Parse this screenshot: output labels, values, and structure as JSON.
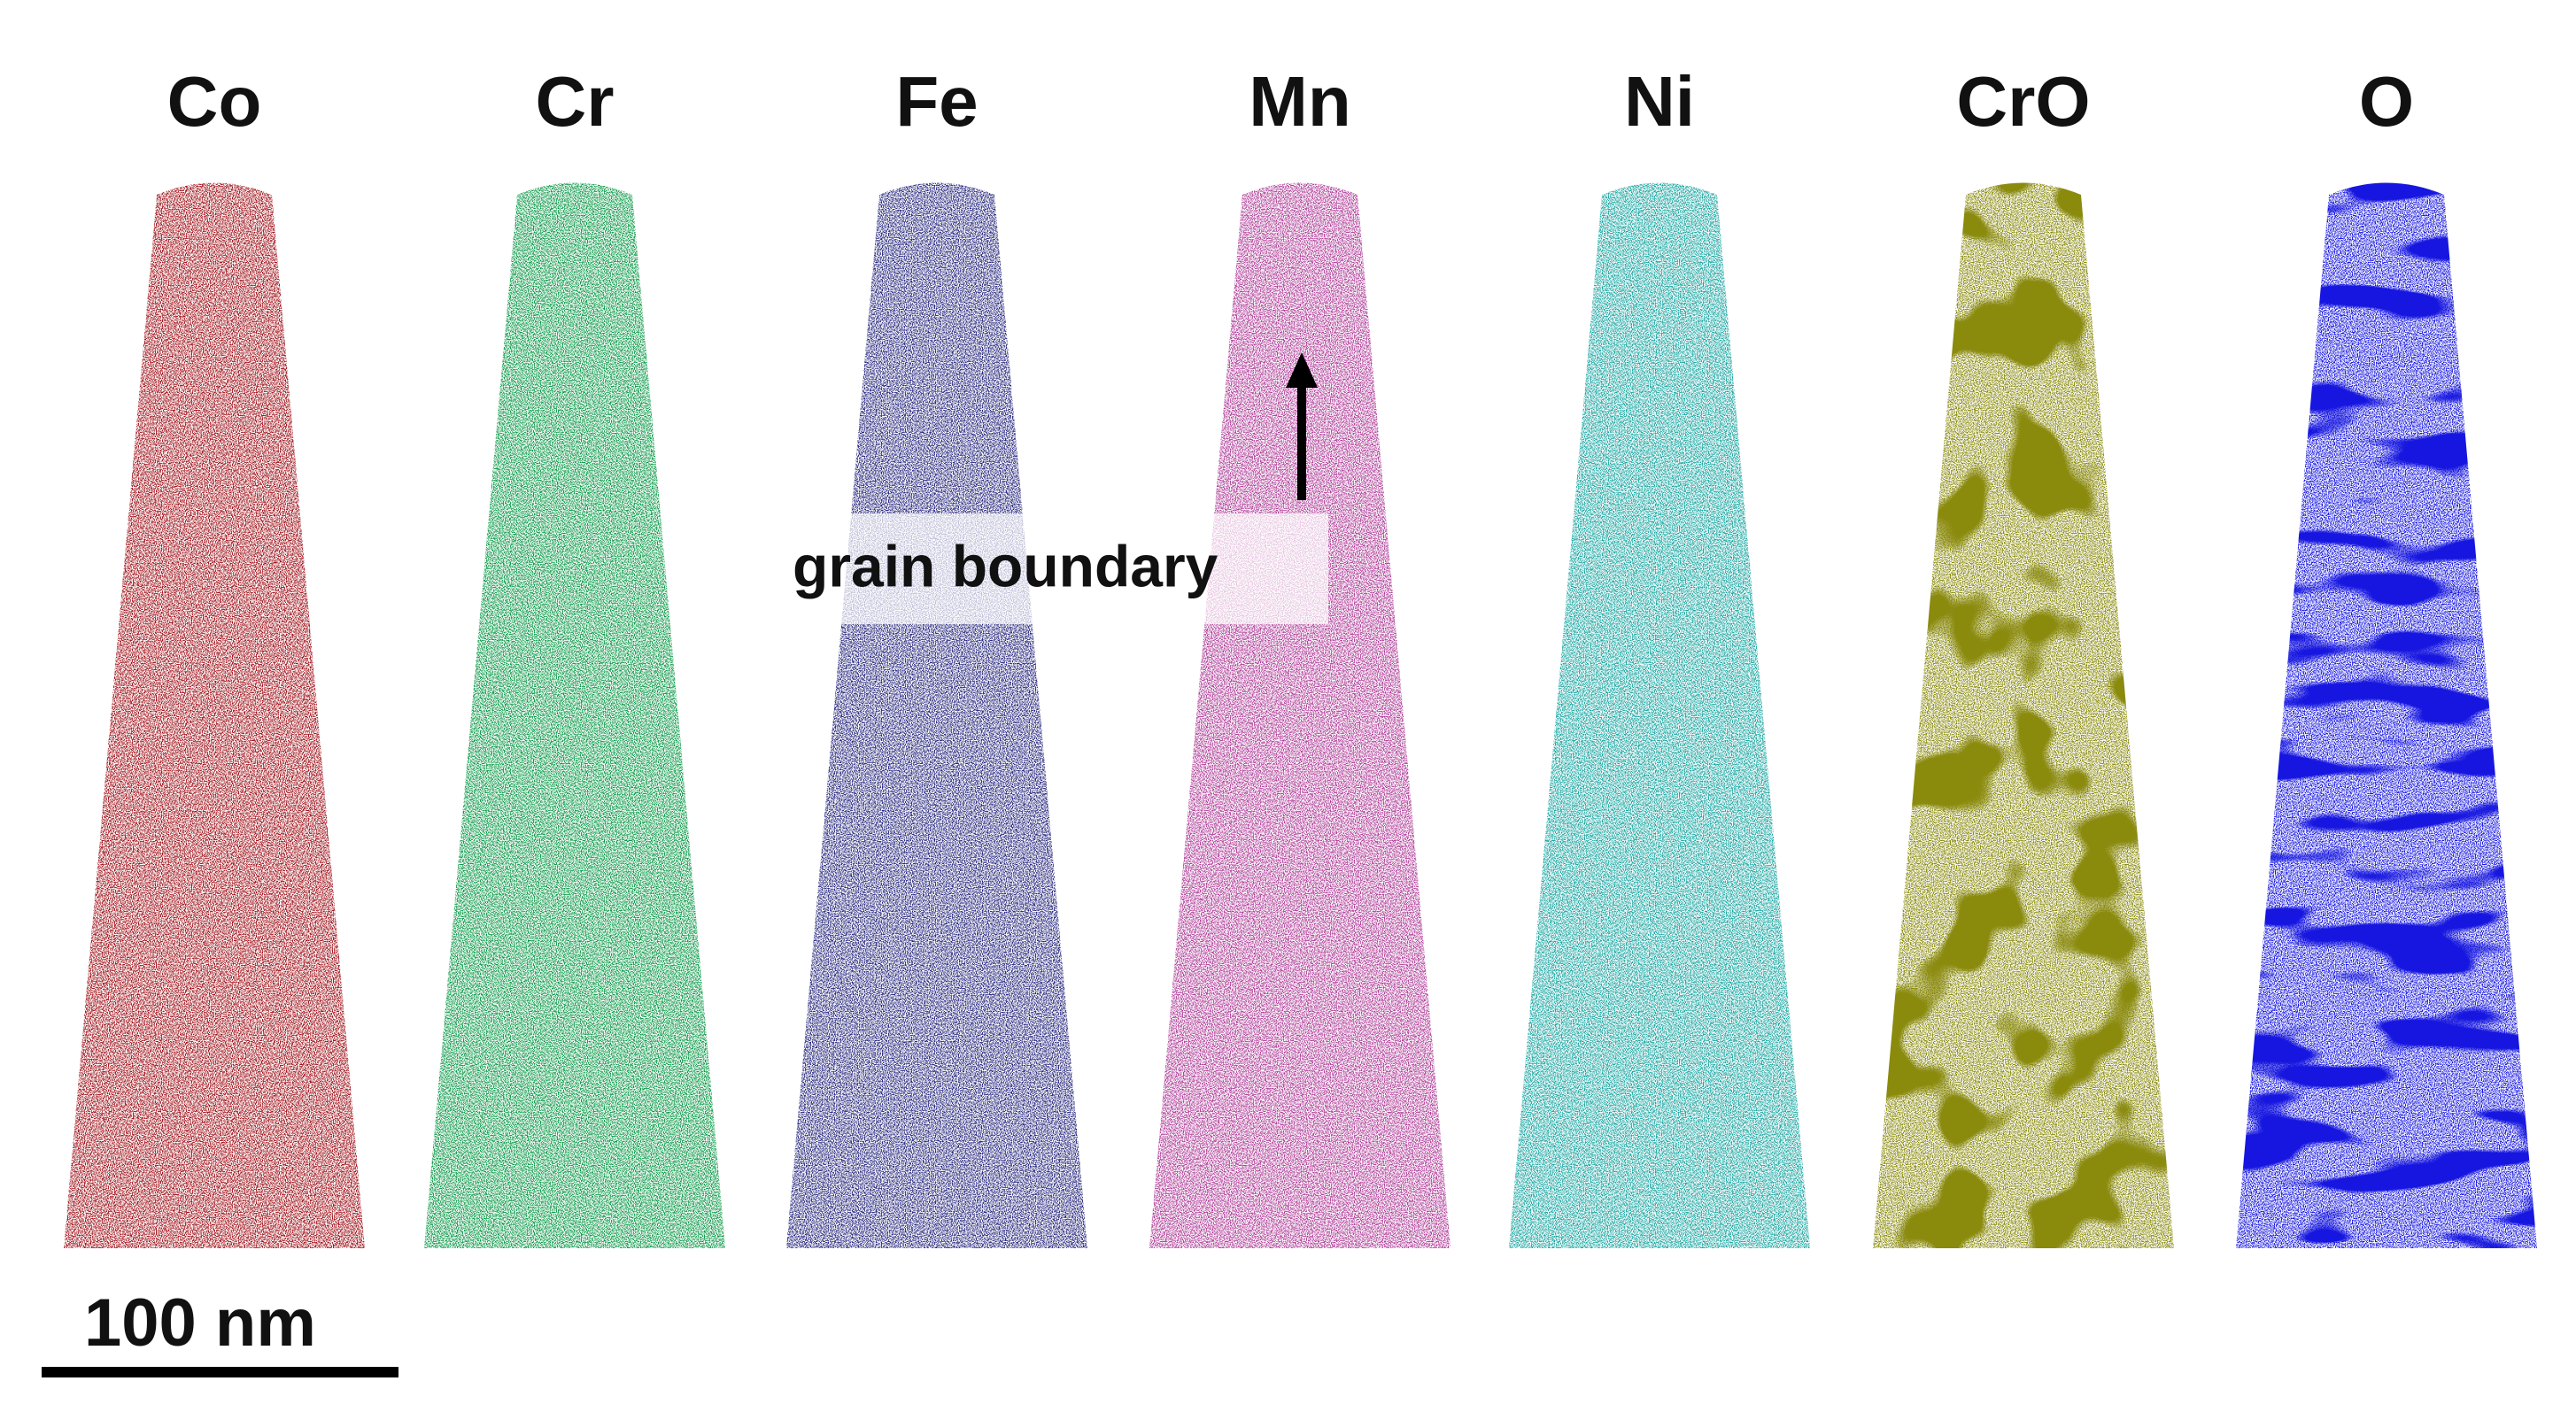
{
  "panels": [
    {
      "label": "Co",
      "color": "#a0141e"
    },
    {
      "label": "Cr",
      "color": "#0f9a4a"
    },
    {
      "label": "Fe",
      "color": "#2b2b80"
    },
    {
      "label": "Mn",
      "color": "#b0409a"
    },
    {
      "label": "Ni",
      "color": "#1aa6a2"
    },
    {
      "label": "CrO",
      "color": "#8a8a10"
    },
    {
      "label": "O",
      "color": "#1818e0"
    }
  ],
  "annotation": "grain boundary",
  "scale_bar": "100 nm"
}
